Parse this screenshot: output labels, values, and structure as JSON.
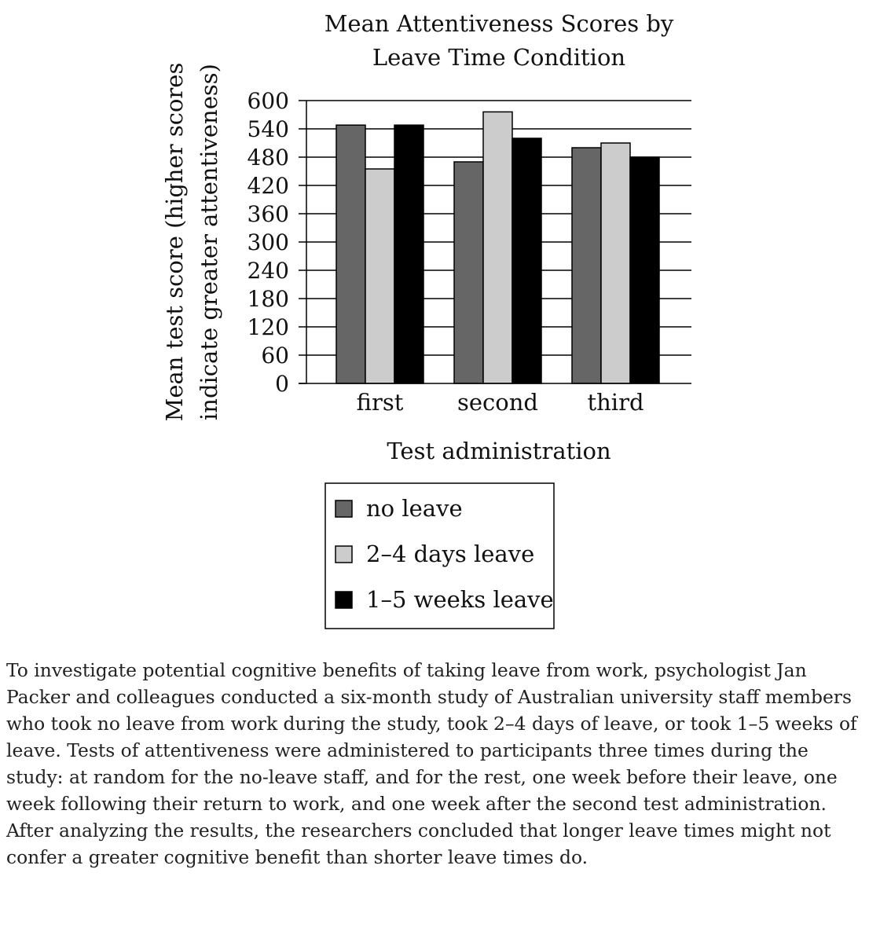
{
  "chart_data": {
    "type": "bar",
    "title": [
      "Mean Attentiveness Scores by",
      "Leave Time Condition"
    ],
    "ylabel": [
      "Mean test score (higher scores",
      "indicate greater attentiveness)"
    ],
    "xlabel": "Test administration",
    "categories": [
      "first",
      "second",
      "third"
    ],
    "ylim": [
      0,
      600
    ],
    "yticks": [
      0,
      60,
      120,
      180,
      240,
      300,
      360,
      420,
      480,
      540,
      600
    ],
    "grid": true,
    "legend_position": "bottom-center",
    "series": [
      {
        "name": "no leave",
        "color": "#666666",
        "values": [
          548,
          470,
          500
        ]
      },
      {
        "name": "2–4 days leave",
        "color": "#cccccc",
        "values": [
          455,
          576,
          510
        ]
      },
      {
        "name": "1–5 weeks leave",
        "color": "#000000",
        "values": [
          548,
          520,
          480
        ]
      }
    ]
  },
  "passage": "To investigate potential cognitive benefits of taking leave from work, psychologist Jan Packer and colleagues conducted a six-month study of Australian university staff members who took no leave from work during the study, took 2–4 days of leave, or took 1–5 weeks of leave. Tests of attentiveness were administered to participants three times during the study: at random for the no-leave staff, and for the rest, one week before their leave, one week following their return to work, and one week after the second test administration. After analyzing the results, the researchers concluded that longer leave times might not confer a greater cognitive benefit than shorter leave times do."
}
